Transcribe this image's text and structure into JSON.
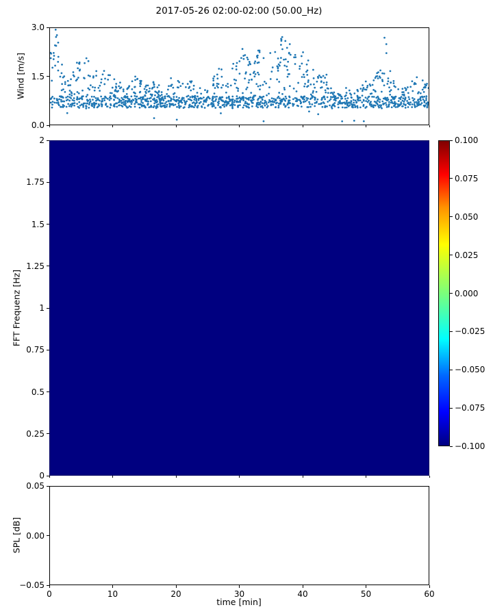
{
  "chart_data": [
    {
      "id": "wind",
      "type": "scatter",
      "title": "2017-05-26 02:00-02:00 (50.00_Hz)",
      "ylabel": "Wind [m/s]",
      "xlim": [
        0,
        60
      ],
      "ylim": [
        0.0,
        3.0
      ],
      "ytick_values": [
        0.0,
        1.5,
        3.0
      ],
      "ytick_labels": [
        "0.0",
        "1.5",
        "3.0"
      ],
      "marker_color": "#1f77b4",
      "point_generation": {
        "seed": 42,
        "n_points": 1500,
        "band": [
          0.52,
          0.88
        ],
        "band_fraction": 0.55,
        "low_outlier_fraction": 0.01,
        "envelope_per_minute": [
          2.3,
          3.0,
          1.8,
          1.6,
          1.9,
          2.0,
          2.1,
          1.9,
          1.7,
          1.8,
          1.6,
          1.4,
          1.0,
          1.5,
          1.5,
          1.2,
          1.5,
          1.3,
          1.1,
          1.5,
          1.4,
          1.3,
          1.5,
          1.2,
          1.4,
          1.1,
          1.6,
          1.8,
          1.4,
          1.9,
          2.1,
          2.2,
          1.8,
          2.4,
          2.2,
          2.3,
          2.5,
          2.8,
          2.4,
          2.2,
          2.3,
          2.1,
          1.7,
          1.5,
          1.6,
          1.1,
          1.0,
          1.2,
          0.9,
          1.3,
          1.4,
          1.2,
          1.8,
          2.75,
          1.8,
          1.2,
          1.1,
          1.3,
          1.5,
          1.4,
          1.3
        ]
      },
      "feature_points": [
        [
          0.9,
          2.95
        ],
        [
          1.1,
          2.78
        ],
        [
          1.3,
          2.55
        ],
        [
          30.5,
          2.35
        ],
        [
          33.2,
          2.3
        ],
        [
          36.8,
          2.72
        ],
        [
          37.3,
          2.6
        ],
        [
          38.0,
          2.5
        ],
        [
          53.0,
          2.7
        ],
        [
          53.3,
          2.5
        ],
        [
          20.1,
          0.15
        ],
        [
          48.2,
          0.12
        ],
        [
          16.5,
          0.2
        ]
      ]
    },
    {
      "id": "fft",
      "type": "heatmap",
      "ylabel": "FFT Frequenz [Hz]",
      "xlim": [
        0,
        60
      ],
      "ylim": [
        0,
        2
      ],
      "ytick_values": [
        0,
        0.25,
        0.5,
        0.75,
        1,
        1.25,
        1.5,
        1.75,
        2
      ],
      "ytick_labels": [
        "0",
        "0.25",
        "0.5",
        "0.75",
        "1",
        "1.25",
        "1.5",
        "1.75",
        "2"
      ],
      "uniform_value": -0.1,
      "fill_color": "#000080",
      "colorbar": {
        "vmin": -0.1,
        "vmax": 0.1,
        "cmap": "jet",
        "tick_values": [
          0.1,
          0.075,
          0.05,
          0.025,
          0.0,
          -0.025,
          -0.05,
          -0.075,
          -0.1
        ],
        "tick_labels": [
          "0.100",
          "0.075",
          "0.050",
          "0.025",
          "0.000",
          "−0.025",
          "−0.050",
          "−0.075",
          "−0.100"
        ],
        "cmap_stops": [
          {
            "pos": 0.0,
            "color": "#000080"
          },
          {
            "pos": 0.11,
            "color": "#0000ff"
          },
          {
            "pos": 0.23,
            "color": "#0068ff"
          },
          {
            "pos": 0.35,
            "color": "#00ffff"
          },
          {
            "pos": 0.5,
            "color": "#7bff7b"
          },
          {
            "pos": 0.66,
            "color": "#ffff00"
          },
          {
            "pos": 0.78,
            "color": "#ff9400"
          },
          {
            "pos": 0.89,
            "color": "#ff0000"
          },
          {
            "pos": 1.0,
            "color": "#800000"
          }
        ]
      }
    },
    {
      "id": "spl",
      "type": "line",
      "ylabel": "SPL [dB]",
      "xlabel": "time [min]",
      "xlim": [
        0,
        60
      ],
      "ylim": [
        -0.05,
        0.05
      ],
      "ytick_values": [
        0.05,
        0.0,
        -0.05
      ],
      "ytick_labels": [
        "0.05",
        "0.00",
        "−0.05"
      ],
      "xtick_values": [
        0,
        10,
        20,
        30,
        40,
        50,
        60
      ],
      "xtick_labels": [
        "0",
        "10",
        "20",
        "30",
        "40",
        "50",
        "60"
      ],
      "series": []
    }
  ]
}
